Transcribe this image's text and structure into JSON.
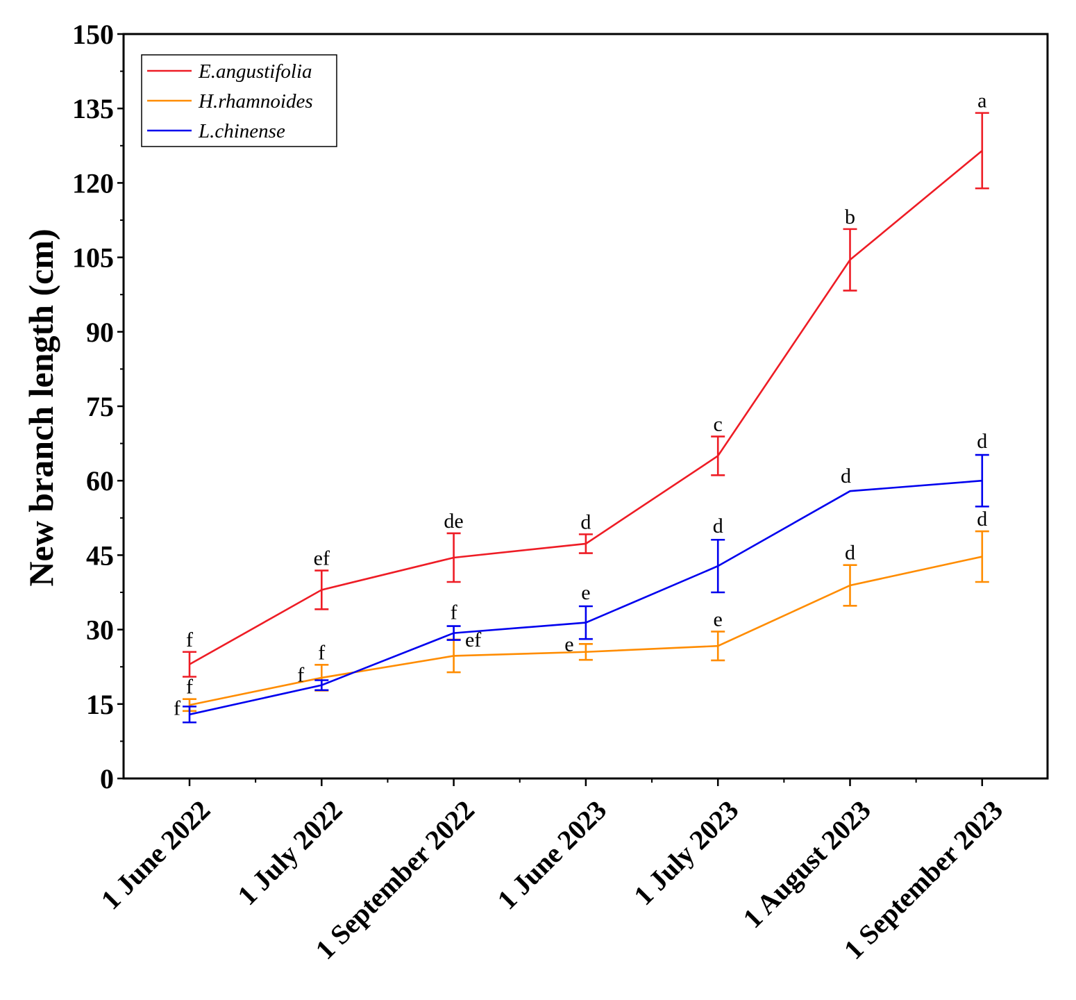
{
  "chart_data": {
    "type": "line",
    "title": "",
    "xlabel": "",
    "ylabel": "New branch length (cm)",
    "ylim": [
      0,
      150
    ],
    "yticks": [
      0,
      15,
      30,
      45,
      60,
      75,
      90,
      105,
      120,
      135,
      150
    ],
    "categories": [
      "1 June 2022",
      "1 July 2022",
      "1 September 2022",
      "1 June 2023",
      "1 July 2023",
      "1 August 2023",
      "1 September 2023"
    ],
    "legend_position": "top-left",
    "series": [
      {
        "name": "E.angustifolia",
        "color": "#ee1c25",
        "values": [
          23.0,
          38.0,
          44.5,
          47.3,
          65.0,
          104.5,
          126.5
        ],
        "errors": [
          2.5,
          3.9,
          4.9,
          1.9,
          3.9,
          6.2,
          7.6
        ],
        "labels": [
          "f",
          "ef",
          "de",
          "d",
          "c",
          "b",
          "a"
        ]
      },
      {
        "name": "H.rhamnoides",
        "color": "#ff8c00",
        "values": [
          14.8,
          20.3,
          24.7,
          25.5,
          26.7,
          38.9,
          44.7
        ],
        "errors": [
          1.2,
          2.6,
          3.3,
          1.6,
          2.9,
          4.1,
          5.1
        ],
        "labels": [
          "f",
          "f",
          "ef",
          "e",
          "e",
          "d",
          "d"
        ]
      },
      {
        "name": "L.chinense",
        "color": "#0000ee",
        "values": [
          12.9,
          18.8,
          29.3,
          31.4,
          42.8,
          57.9,
          60.0
        ],
        "errors": [
          1.6,
          1.0,
          1.4,
          3.3,
          5.3,
          0.0,
          5.2
        ],
        "labels": [
          "f",
          "f",
          "f",
          "e",
          "d",
          "d",
          "d"
        ]
      }
    ]
  }
}
